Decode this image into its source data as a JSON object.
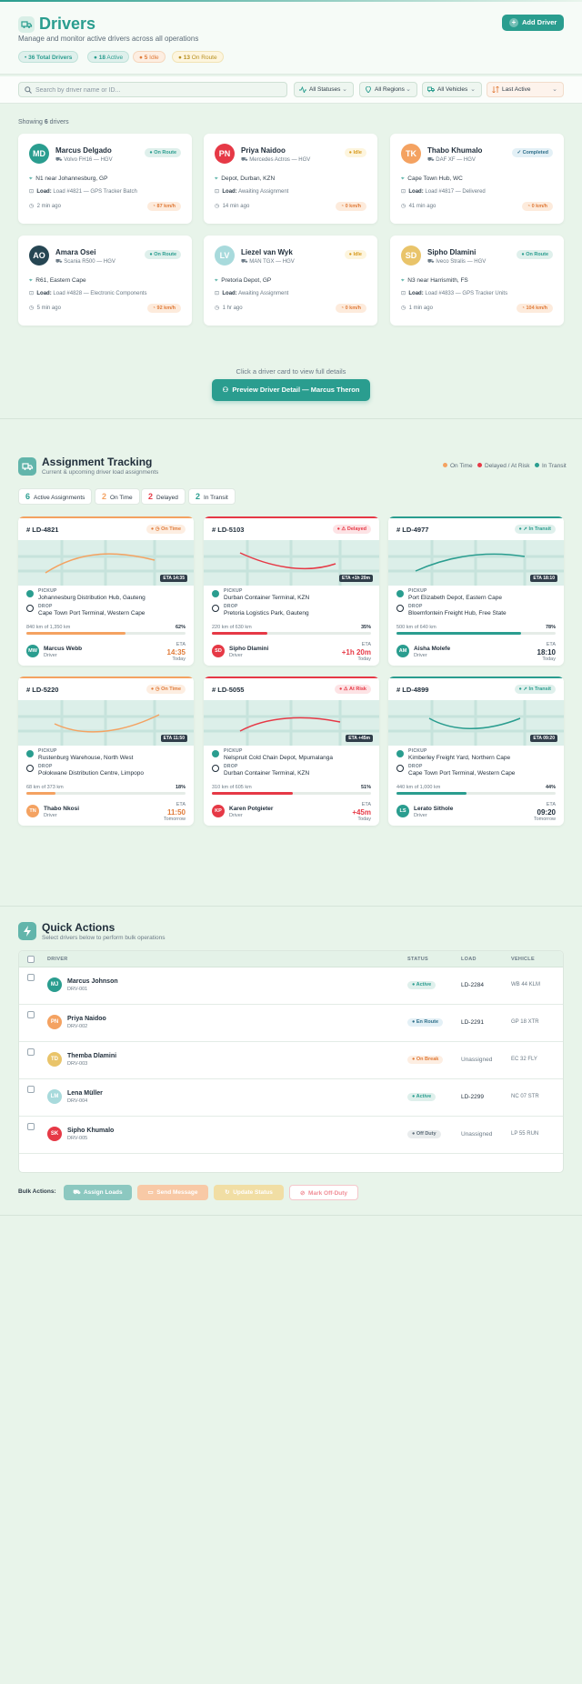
{
  "header": {
    "title": "Drivers",
    "subtitle": "Manage and monitor active drivers across all operations",
    "add_label": "Add Driver",
    "pills": [
      {
        "count": "36",
        "label": "Total Drivers"
      },
      {
        "count": "18",
        "label": "Active"
      },
      {
        "count": "5",
        "label": "Idle"
      },
      {
        "count": "13",
        "label": "On Route"
      }
    ]
  },
  "filters": {
    "search_placeholder": "Search by driver name or ID...",
    "status": "All Statuses",
    "region": "All Regions",
    "vehicle": "All Vehicles",
    "sort": "Last Active"
  },
  "showing": {
    "prefix": "Showing",
    "count": "6",
    "suffix": "drivers"
  },
  "drivers": [
    {
      "initials": "MD",
      "name": "Marcus Delgado",
      "vehicle": "Volvo FH16 — HGV",
      "status": "On Route",
      "location": "N1 near Johannesburg, GP",
      "load_label": "Load:",
      "load": "Load #4821 — GPS Tracker Batch",
      "time": "2 min ago",
      "speed": "87 km/h"
    },
    {
      "initials": "PN",
      "name": "Priya Naidoo",
      "vehicle": "Mercedes Actros — HGV",
      "status": "Idle",
      "location": "Depot, Durban, KZN",
      "load_label": "Load:",
      "load": "Awaiting Assignment",
      "time": "14 min ago",
      "speed": "0 km/h"
    },
    {
      "initials": "TK",
      "name": "Thabo Khumalo",
      "vehicle": "DAF XF — HGV",
      "status": "Completed",
      "location": "Cape Town Hub, WC",
      "load_label": "Load:",
      "load": "Load #4817 — Delivered",
      "time": "41 min ago",
      "speed": "0 km/h"
    },
    {
      "initials": "AO",
      "name": "Amara Osei",
      "vehicle": "Scania R500 — HGV",
      "status": "On Route",
      "location": "R61, Eastern Cape",
      "load_label": "Load:",
      "load": "Load #4828 — Electronic Components",
      "time": "5 min ago",
      "speed": "92 km/h"
    },
    {
      "initials": "LV",
      "name": "Liezel van Wyk",
      "vehicle": "MAN TGX — HGV",
      "status": "Idle",
      "location": "Pretoria Depot, GP",
      "load_label": "Load:",
      "load": "Awaiting Assignment",
      "time": "1 hr ago",
      "speed": "0 km/h"
    },
    {
      "initials": "SD",
      "name": "Sipho Dlamini",
      "vehicle": "Iveco Stralis — HGV",
      "status": "On Route",
      "location": "N3 near Harrismith, FS",
      "load_label": "Load:",
      "load": "Load #4833 — GPS Tracker Units",
      "time": "1 min ago",
      "speed": "104 km/h"
    }
  ],
  "preview": {
    "hint": "Click a driver card to view full details",
    "button": "Preview Driver Detail — Marcus Theron"
  },
  "assignments_section": {
    "title": "Assignment Tracking",
    "subtitle": "Current & upcoming driver load assignments",
    "legend": [
      "On Time",
      "Delayed / At Risk",
      "In Transit"
    ],
    "stats": [
      {
        "count": "6",
        "label": "Active Assignments"
      },
      {
        "count": "2",
        "label": "On Time"
      },
      {
        "count": "2",
        "label": "Delayed"
      },
      {
        "count": "2",
        "label": "In Transit"
      }
    ],
    "pickup_label": "PICKUP",
    "drop_label": "DROP",
    "driver_role": "Driver",
    "eta_label": "ETA"
  },
  "assignments": [
    {
      "id": "# LD-4821",
      "status": "On Time",
      "map_eta": "ETA 14:35",
      "pickup": "Johannesburg Distribution Hub, Gauteng",
      "drop": "Cape Town Port Terminal, Western Cape",
      "progress_text": "840 km of 1,350 km",
      "progress": 62,
      "progress_label": "62%",
      "driver_initials": "MW",
      "driver": "Marcus Webb",
      "eta": "14:35",
      "eta_day": "Today"
    },
    {
      "id": "# LD-5103",
      "status": "Delayed",
      "map_eta": "ETA +1h 20m",
      "pickup": "Durban Container Terminal, KZN",
      "drop": "Pretoria Logistics Park, Gauteng",
      "progress_text": "220 km of 630 km",
      "progress": 35,
      "progress_label": "35%",
      "driver_initials": "SD",
      "driver": "Sipho Dlamini",
      "eta": "+1h 20m",
      "eta_day": "Today"
    },
    {
      "id": "# LD-4977",
      "status": "In Transit",
      "map_eta": "ETA 18:10",
      "pickup": "Port Elizabeth Depot, Eastern Cape",
      "drop": "Bloemfontein Freight Hub, Free State",
      "progress_text": "500 km of 640 km",
      "progress": 78,
      "progress_label": "78%",
      "driver_initials": "AM",
      "driver": "Aisha Molefe",
      "eta": "18:10",
      "eta_day": "Today"
    },
    {
      "id": "# LD-5220",
      "status": "On Time",
      "map_eta": "ETA 11:50",
      "pickup": "Rustenburg Warehouse, North West",
      "drop": "Polokwane Distribution Centre, Limpopo",
      "progress_text": "68 km of 373 km",
      "progress": 18,
      "progress_label": "18%",
      "driver_initials": "TN",
      "driver": "Thabo Nkosi",
      "eta": "11:50",
      "eta_day": "Tomorrow"
    },
    {
      "id": "# LD-5055",
      "status": "At Risk",
      "map_eta": "ETA +45m",
      "pickup": "Nelspruit Cold Chain Depot, Mpumalanga",
      "drop": "Durban Container Terminal, KZN",
      "progress_text": "310 km of 605 km",
      "progress": 51,
      "progress_label": "51%",
      "driver_initials": "KP",
      "driver": "Karen Potgieter",
      "eta": "+45m",
      "eta_day": "Today"
    },
    {
      "id": "# LD-4899",
      "status": "In Transit",
      "map_eta": "ETA 09:20",
      "pickup": "Kimberley Freight Yard, Northern Cape",
      "drop": "Cape Town Port Terminal, Western Cape",
      "progress_text": "440 km of 1,000 km",
      "progress": 44,
      "progress_label": "44%",
      "driver_initials": "LS",
      "driver": "Lerato Sithole",
      "eta": "09:20",
      "eta_day": "Tomorrow"
    }
  ],
  "quick_actions": {
    "title": "Quick Actions",
    "subtitle": "Select drivers below to perform bulk operations",
    "columns": [
      "DRIVER",
      "STATUS",
      "LOAD",
      "VEHICLE"
    ],
    "rows": [
      {
        "initials": "MJ",
        "name": "Marcus Johnson",
        "id": "DRV-001",
        "status": "Active",
        "load": "LD-2284",
        "vehicle": "WB 44 KLM"
      },
      {
        "initials": "PN",
        "name": "Priya Naidoo",
        "id": "DRV-002",
        "status": "En Route",
        "load": "LD-2291",
        "vehicle": "GP 18 XTR"
      },
      {
        "initials": "TD",
        "name": "Themba Dlamini",
        "id": "DRV-003",
        "status": "On Break",
        "load": "Unassigned",
        "vehicle": "EC 32 FLY"
      },
      {
        "initials": "LM",
        "name": "Lena Müller",
        "id": "DRV-004",
        "status": "Active",
        "load": "LD-2299",
        "vehicle": "NC 07 STR"
      },
      {
        "initials": "SK",
        "name": "Sipho Khumalo",
        "id": "DRV-005",
        "status": "Off Duty",
        "load": "Unassigned",
        "vehicle": "LP 55 RUN"
      }
    ],
    "bulk_label": "Bulk Actions:",
    "buttons": [
      "Assign Loads",
      "Send Message",
      "Update Status",
      "Mark Off-Duty"
    ]
  },
  "colors": {
    "accent": "#2a9d8f",
    "orange": "#f4a261",
    "red": "#e63946",
    "navy": "#264653",
    "yellow": "#e9c46a",
    "sky": "#a8dadc"
  }
}
